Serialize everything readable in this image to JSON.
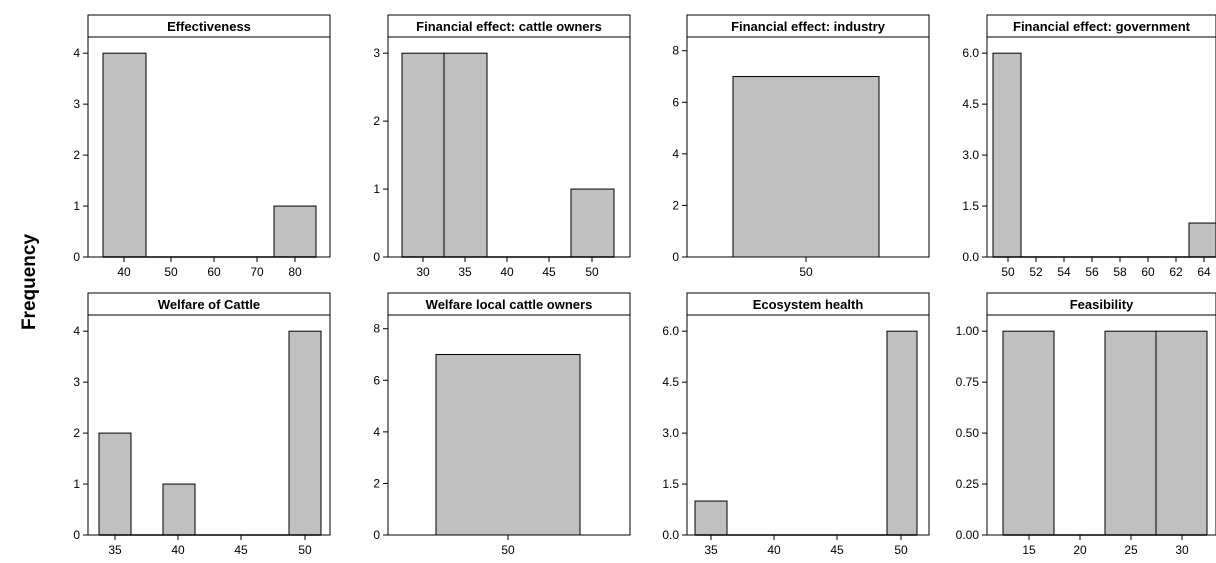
{
  "shared_ylabel": "Frequency",
  "colors": {
    "bar_fill": "#c0c0c0",
    "bar_stroke": "#000000",
    "background": "#ffffff"
  },
  "chart_data": [
    {
      "type": "bar",
      "title": "Effectiveness",
      "categories": [
        "40",
        "50",
        "60",
        "70",
        "80"
      ],
      "values": [
        4,
        0,
        0,
        0,
        1
      ],
      "yticks": [
        "0",
        "1",
        "2",
        "3",
        "4"
      ],
      "ylim": [
        0,
        4.2
      ],
      "grid": false,
      "legend": false
    },
    {
      "type": "bar",
      "title": "Financial effect: cattle owners",
      "categories": [
        "30",
        "35",
        "40",
        "45",
        "50"
      ],
      "values": [
        3,
        3,
        0,
        0,
        1
      ],
      "yticks": [
        "0",
        "1",
        "2",
        "3"
      ],
      "ylim": [
        0,
        3.15
      ],
      "grid": false,
      "legend": false
    },
    {
      "type": "bar",
      "title": "Financial effect: industry",
      "categories": [
        "50"
      ],
      "values": [
        7
      ],
      "yticks": [
        "0",
        "2",
        "4",
        "6",
        "8"
      ],
      "ylim": [
        0,
        8.3
      ],
      "grid": false,
      "legend": false
    },
    {
      "type": "bar",
      "title": "Financial  effect: government",
      "categories": [
        "50",
        "52",
        "54",
        "56",
        "58",
        "60",
        "62",
        "64"
      ],
      "values": [
        6,
        0,
        0,
        0,
        0,
        0,
        0,
        1
      ],
      "yticks": [
        "0.0",
        "1.5",
        "3.0",
        "4.5",
        "6.0"
      ],
      "ylim": [
        0,
        6.3
      ],
      "grid": false,
      "legend": false
    },
    {
      "type": "bar",
      "title": "Welfare of Cattle",
      "categories": [
        "35",
        "40",
        "45",
        "50"
      ],
      "values": [
        2,
        1,
        0,
        4
      ],
      "yticks": [
        "0",
        "1",
        "2",
        "3",
        "4"
      ],
      "ylim": [
        0,
        4.2
      ],
      "grid": false,
      "legend": false
    },
    {
      "type": "bar",
      "title": "Welfare local cattle owners",
      "categories": [
        "50"
      ],
      "values": [
        7
      ],
      "yticks": [
        "0",
        "2",
        "4",
        "6",
        "8"
      ],
      "ylim": [
        0,
        8.3
      ],
      "grid": false,
      "legend": false
    },
    {
      "type": "bar",
      "title": "Ecosystem health",
      "categories": [
        "35",
        "40",
        "45",
        "50"
      ],
      "values": [
        1,
        0,
        0,
        6
      ],
      "yticks": [
        "0.0",
        "1.5",
        "3.0",
        "4.5",
        "6.0"
      ],
      "ylim": [
        0,
        6.3
      ],
      "grid": false,
      "legend": false
    },
    {
      "type": "bar",
      "title": "Feasibility",
      "categories": [
        "15",
        "20",
        "25",
        "30"
      ],
      "values": [
        1,
        0,
        1,
        1
      ],
      "yticks": [
        "0.00",
        "0.25",
        "0.50",
        "0.75",
        "1.00"
      ],
      "ylim": [
        0,
        1.05
      ],
      "grid": false,
      "legend": false
    }
  ]
}
